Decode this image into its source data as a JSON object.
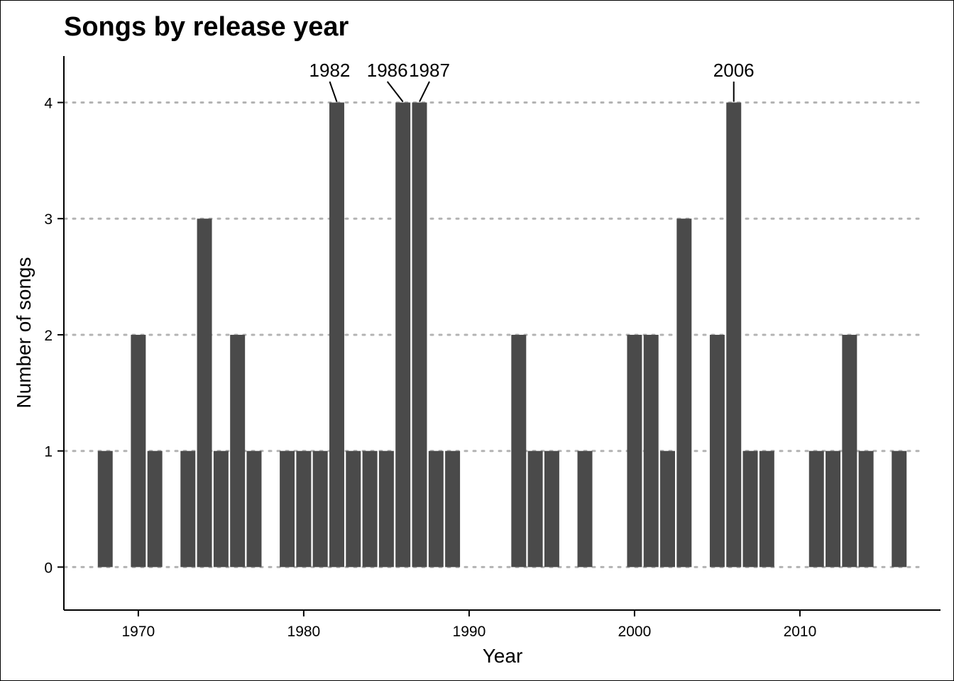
{
  "chart_data": {
    "type": "bar",
    "title": "Songs by release year",
    "xlabel": "Year",
    "ylabel": "Number of songs",
    "x": [
      1968,
      1970,
      1971,
      1973,
      1974,
      1975,
      1976,
      1977,
      1979,
      1980,
      1981,
      1982,
      1983,
      1984,
      1985,
      1986,
      1987,
      1988,
      1989,
      1993,
      1994,
      1995,
      1997,
      2000,
      2001,
      2002,
      2003,
      2005,
      2006,
      2007,
      2008,
      2011,
      2012,
      2013,
      2014,
      2016
    ],
    "values": [
      1,
      2,
      1,
      1,
      3,
      1,
      2,
      1,
      1,
      1,
      1,
      4,
      1,
      1,
      1,
      4,
      4,
      1,
      1,
      2,
      1,
      1,
      1,
      2,
      2,
      1,
      3,
      2,
      4,
      1,
      1,
      1,
      1,
      2,
      1,
      1
    ],
    "xlim": [
      1965.5,
      2018.5
    ],
    "ylim": [
      -0.37,
      4.4
    ],
    "x_ticks": [
      "1970",
      "1980",
      "1990",
      "2000",
      "2010"
    ],
    "y_ticks": [
      "0",
      "1",
      "2",
      "3",
      "4"
    ],
    "annotations": [
      {
        "label": "1982",
        "x": 1982,
        "y": 4
      },
      {
        "label": "1986",
        "x": 1986,
        "y": 4
      },
      {
        "label": "1987",
        "x": 1987,
        "y": 4
      },
      {
        "label": "2006",
        "x": 2006,
        "y": 4
      }
    ],
    "grid": "horizontal-dotted",
    "legend": "none",
    "bar_color": "#4a4a4a",
    "grid_color": "#b3b3b3"
  }
}
